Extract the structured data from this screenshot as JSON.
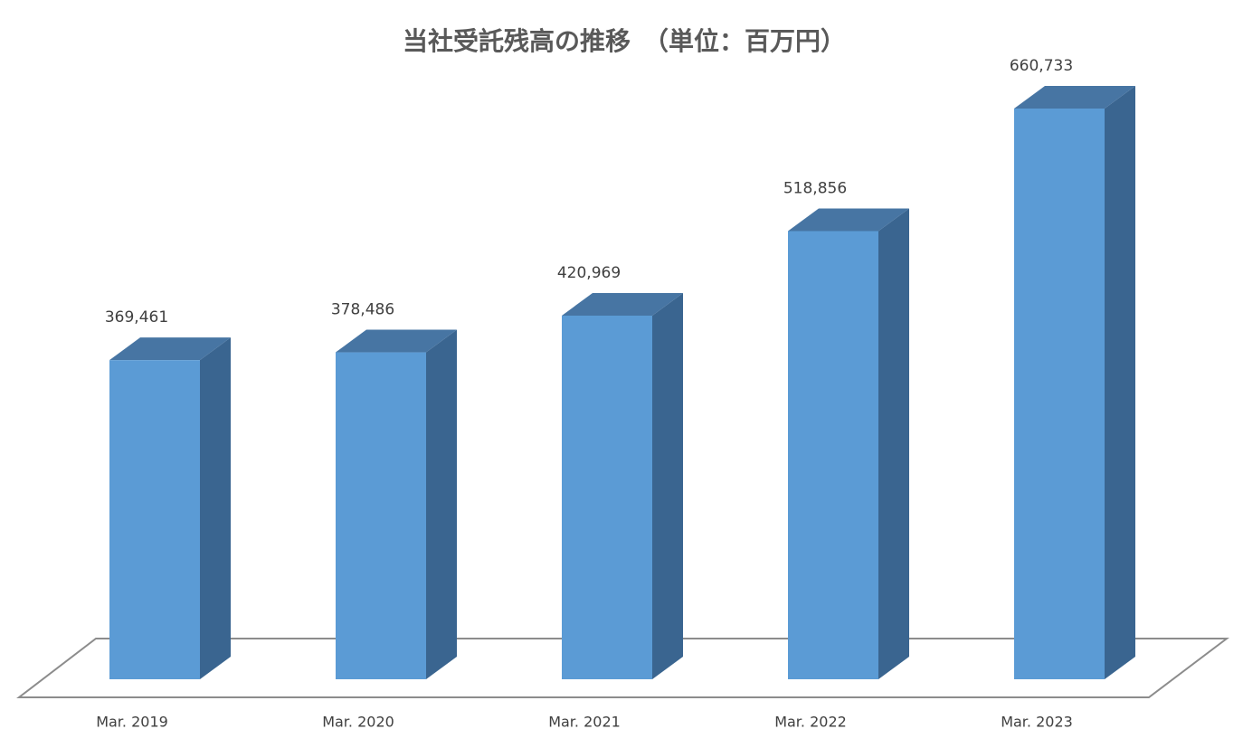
{
  "chart_data": {
    "type": "bar3d",
    "title": "当社受託残高の推移　（単位：百万円）",
    "categories": [
      "Mar. 2019",
      "Mar. 2020",
      "Mar. 2021",
      "Mar. 2022",
      "Mar. 2023"
    ],
    "values": [
      369461,
      378486,
      420969,
      518856,
      660733
    ],
    "value_labels": [
      "369,461",
      "378,486",
      "420,969",
      "518,856",
      "660,733"
    ],
    "color": "#5b9bd5"
  }
}
